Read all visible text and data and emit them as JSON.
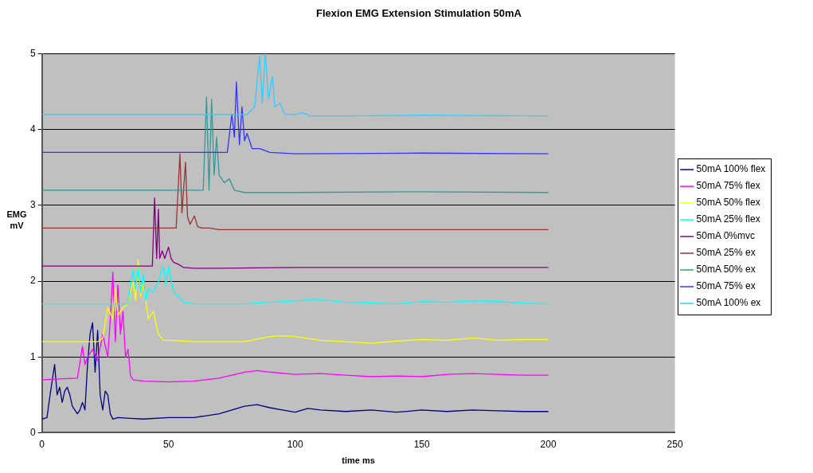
{
  "chart_data": {
    "type": "line",
    "title": "Flexion EMG Extension Stimulation 50mA",
    "xlabel": "time ms",
    "ylabel": "EMG mV",
    "xlim": [
      0,
      250
    ],
    "xticks": [
      0,
      50,
      100,
      150,
      200,
      250
    ],
    "ylim": [
      0,
      5
    ],
    "yticks": [
      0,
      1,
      2,
      3,
      4,
      5
    ],
    "grid": "y",
    "legend": "right",
    "series": [
      {
        "name": "50mA 100% flex",
        "color": "#000080",
        "x": [
          0,
          2,
          3,
          5,
          6,
          7,
          8,
          9,
          10,
          11,
          12,
          13,
          14,
          15,
          16,
          17,
          18,
          19,
          20,
          21,
          22,
          23,
          24,
          25,
          26,
          27,
          28,
          30,
          35,
          40,
          50,
          60,
          70,
          75,
          80,
          85,
          90,
          95,
          100,
          105,
          110,
          120,
          130,
          140,
          150,
          160,
          170,
          180,
          190,
          200
        ],
        "values": [
          0.18,
          0.2,
          0.45,
          0.9,
          0.5,
          0.6,
          0.4,
          0.55,
          0.6,
          0.5,
          0.35,
          0.3,
          0.25,
          0.3,
          0.4,
          0.3,
          0.9,
          1.3,
          1.45,
          0.8,
          1.35,
          0.5,
          0.3,
          0.55,
          0.5,
          0.25,
          0.18,
          0.2,
          0.19,
          0.18,
          0.2,
          0.2,
          0.25,
          0.3,
          0.35,
          0.37,
          0.33,
          0.3,
          0.27,
          0.32,
          0.3,
          0.28,
          0.3,
          0.27,
          0.3,
          0.28,
          0.3,
          0.29,
          0.28,
          0.28
        ]
      },
      {
        "name": "50mA 75% flex",
        "color": "#ff00ff",
        "x": [
          0,
          14,
          16,
          17,
          18,
          20,
          22,
          24,
          26,
          27,
          28,
          29,
          30,
          31,
          32,
          33,
          34,
          35,
          36,
          40,
          50,
          60,
          70,
          80,
          85,
          90,
          100,
          110,
          120,
          130,
          140,
          150,
          160,
          170,
          180,
          190,
          200
        ],
        "values": [
          0.7,
          0.72,
          1.14,
          0.9,
          1.0,
          1.1,
          0.95,
          1.3,
          1.0,
          1.5,
          2.12,
          1.2,
          1.95,
          1.3,
          1.6,
          1.0,
          1.1,
          0.75,
          0.7,
          0.68,
          0.67,
          0.68,
          0.72,
          0.8,
          0.82,
          0.8,
          0.77,
          0.78,
          0.76,
          0.74,
          0.75,
          0.74,
          0.77,
          0.78,
          0.77,
          0.76,
          0.76
        ]
      },
      {
        "name": "50mA 50% flex",
        "color": "#ffff00",
        "x": [
          0,
          22,
          24,
          25,
          26,
          28,
          29,
          30,
          32,
          34,
          36,
          37,
          38,
          39,
          40,
          42,
          44,
          46,
          48,
          50,
          60,
          70,
          80,
          90,
          95,
          100,
          110,
          120,
          130,
          140,
          150,
          160,
          170,
          180,
          190,
          200
        ],
        "values": [
          1.2,
          1.2,
          1.25,
          1.45,
          1.65,
          1.5,
          1.9,
          1.55,
          1.65,
          1.7,
          2.0,
          1.75,
          2.28,
          1.8,
          2.0,
          1.5,
          1.6,
          1.3,
          1.22,
          1.22,
          1.2,
          1.2,
          1.2,
          1.27,
          1.28,
          1.27,
          1.22,
          1.2,
          1.18,
          1.21,
          1.23,
          1.22,
          1.25,
          1.22,
          1.23,
          1.23
        ]
      },
      {
        "name": "50mA 25% flex",
        "color": "#00ffff",
        "x": [
          0,
          34,
          35,
          36,
          37,
          38,
          39,
          40,
          41,
          42,
          44,
          46,
          48,
          49,
          50,
          52,
          54,
          56,
          60,
          70,
          80,
          90,
          100,
          108,
          120,
          130,
          140,
          150,
          160,
          170,
          180,
          190,
          200
        ],
        "values": [
          1.7,
          1.7,
          1.95,
          2.15,
          1.9,
          2.2,
          1.85,
          2.1,
          1.75,
          1.9,
          1.85,
          2.0,
          2.2,
          1.95,
          2.2,
          1.85,
          1.8,
          1.72,
          1.7,
          1.7,
          1.7,
          1.72,
          1.74,
          1.76,
          1.72,
          1.71,
          1.7,
          1.73,
          1.72,
          1.74,
          1.73,
          1.71,
          1.7
        ]
      },
      {
        "name": "50mA 0%mvc",
        "color": "#800080",
        "x": [
          0,
          43.6,
          44.5,
          45.3,
          46,
          46.5,
          47.5,
          48.5,
          50,
          51,
          52,
          54,
          56,
          60,
          70,
          100,
          150,
          200
        ],
        "values": [
          2.2,
          2.2,
          3.1,
          2.3,
          2.95,
          2.3,
          2.4,
          2.3,
          2.45,
          2.3,
          2.25,
          2.22,
          2.18,
          2.17,
          2.17,
          2.18,
          2.18,
          2.18
        ]
      },
      {
        "name": "50mA 25% ex",
        "color": "#993333",
        "x": [
          0,
          53,
          54.5,
          55.3,
          56.7,
          57.5,
          58.5,
          60.2,
          61.5,
          63,
          66,
          70,
          100,
          150,
          200
        ],
        "values": [
          2.7,
          2.7,
          3.68,
          2.9,
          3.57,
          2.85,
          2.75,
          2.86,
          2.72,
          2.7,
          2.7,
          2.68,
          2.68,
          2.68,
          2.68
        ]
      },
      {
        "name": "50mA 50% ex",
        "color": "#339999",
        "x": [
          0,
          63.7,
          65,
          66,
          67,
          68,
          69,
          70,
          72,
          74,
          76,
          80,
          100,
          150,
          200
        ],
        "values": [
          3.2,
          3.2,
          4.43,
          3.2,
          4.4,
          3.4,
          3.9,
          3.4,
          3.3,
          3.35,
          3.2,
          3.17,
          3.17,
          3.18,
          3.17
        ]
      },
      {
        "name": "50mA 75% ex",
        "color": "#3333ff",
        "x": [
          0,
          73.2,
          75,
          76,
          76.8,
          78,
          79,
          80,
          81,
          83,
          86,
          90,
          100,
          150,
          200
        ],
        "values": [
          3.7,
          3.7,
          4.2,
          3.9,
          4.63,
          3.8,
          4.3,
          3.85,
          3.95,
          3.75,
          3.75,
          3.7,
          3.68,
          3.69,
          3.68
        ]
      },
      {
        "name": "50mA 100% ex",
        "color": "#33ccff",
        "x": [
          0,
          81,
          84,
          86,
          87,
          88.2,
          89.5,
          91,
          92,
          94,
          96,
          100,
          103,
          106,
          120,
          150,
          200
        ],
        "values": [
          4.2,
          4.2,
          4.3,
          4.97,
          4.35,
          5.0,
          4.4,
          4.7,
          4.3,
          4.35,
          4.2,
          4.2,
          4.22,
          4.18,
          4.18,
          4.19,
          4.18
        ]
      }
    ]
  }
}
